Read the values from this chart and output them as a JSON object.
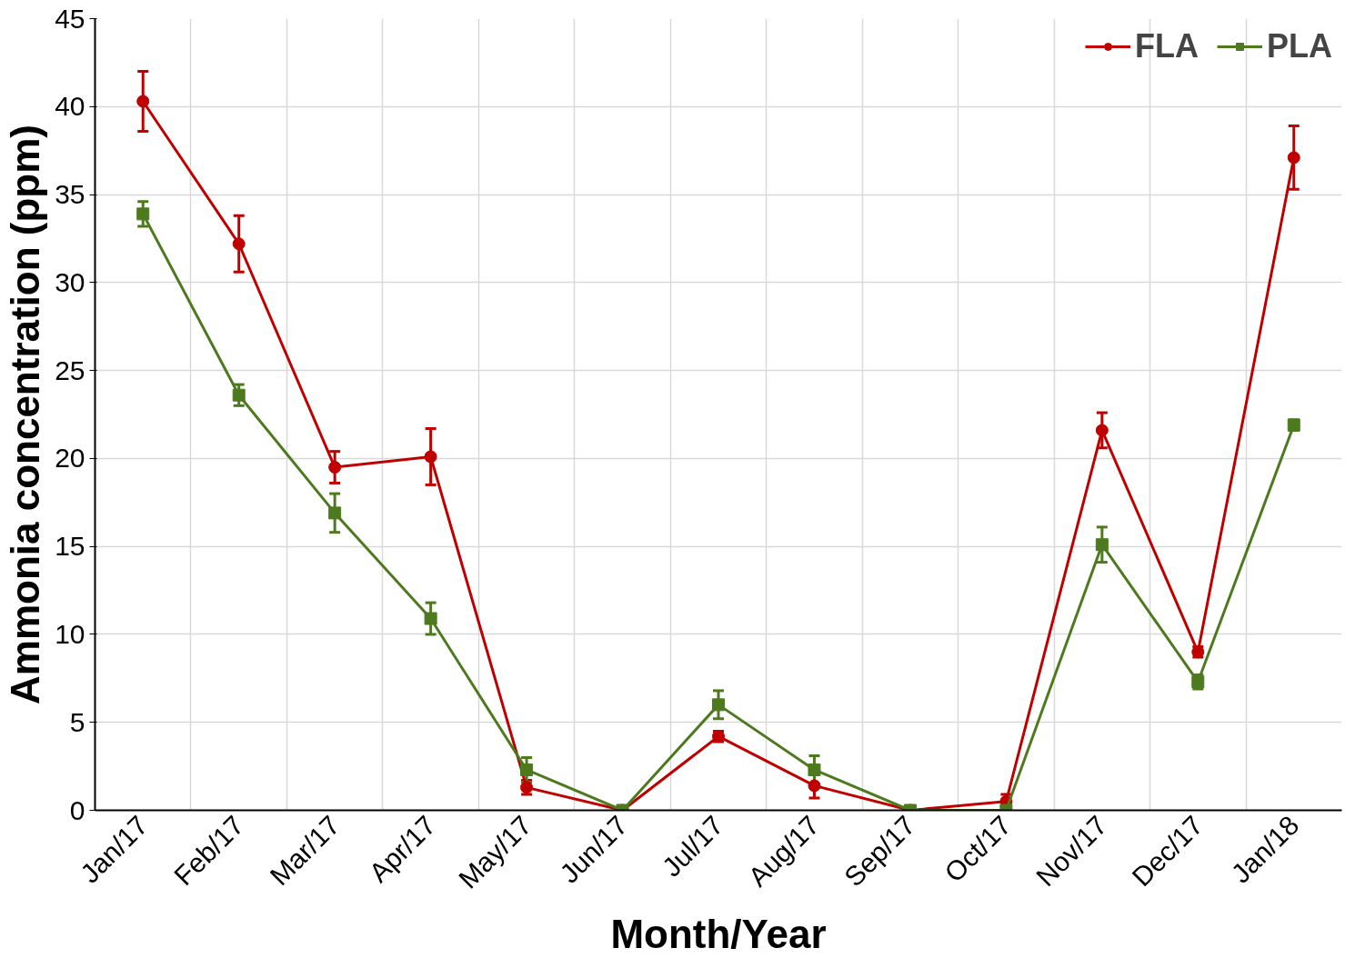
{
  "chart_data": {
    "type": "line",
    "xlabel": "Month/Year",
    "ylabel": "Ammonia concentration (ppm)",
    "categories": [
      "Jan/17",
      "Feb/17",
      "Mar/17",
      "Apr/17",
      "May/17",
      "Jun/17",
      "Jul/17",
      "Aug/17",
      "Sep/17",
      "Oct/17",
      "Nov/17",
      "Dec/17",
      "Jan/18"
    ],
    "series": [
      {
        "name": "FLA",
        "color": "#c00000",
        "marker": "circle",
        "values": [
          40.3,
          32.2,
          19.5,
          20.1,
          1.3,
          0,
          4.2,
          1.4,
          0,
          0.5,
          21.6,
          9.0,
          37.1
        ],
        "errors": [
          1.7,
          1.6,
          0.9,
          1.6,
          0.4,
          0,
          0.3,
          0.7,
          0,
          0.4,
          1.0,
          0.3,
          1.8
        ]
      },
      {
        "name": "PLA",
        "color": "#4e7a1f",
        "marker": "square",
        "values": [
          33.9,
          23.6,
          16.9,
          10.9,
          2.3,
          0,
          6.0,
          2.3,
          0,
          0,
          15.1,
          7.3,
          21.9
        ],
        "errors": [
          0.7,
          0.6,
          1.1,
          0.9,
          0.7,
          0,
          0.8,
          0.8,
          0,
          0,
          1.0,
          0.4,
          0.3
        ]
      }
    ],
    "ylim": [
      0,
      45
    ],
    "yticks": [
      0,
      5,
      10,
      15,
      20,
      25,
      30,
      35,
      40,
      45
    ],
    "grid": true,
    "legend": "top right",
    "line_style": "solid"
  }
}
